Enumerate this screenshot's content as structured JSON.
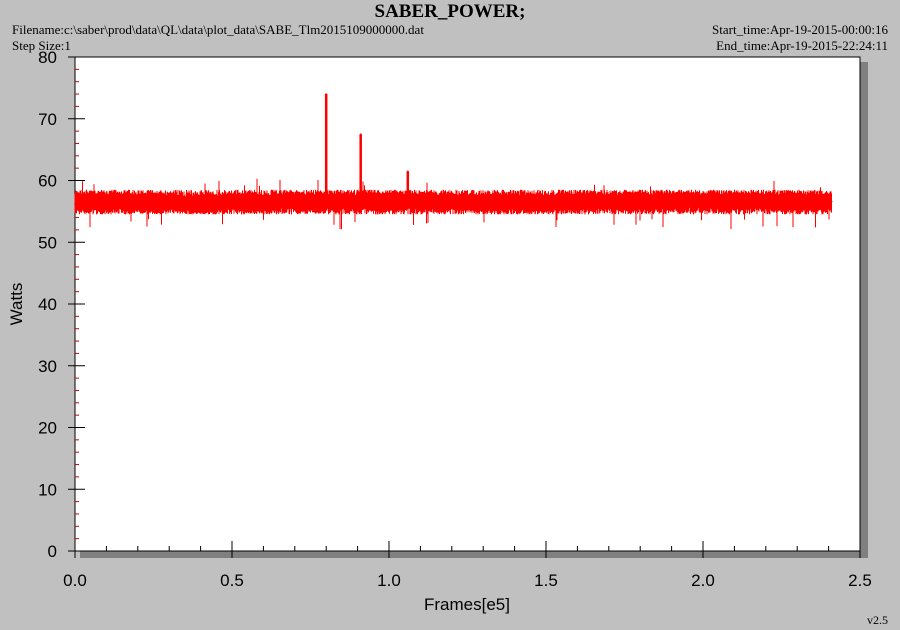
{
  "header": {
    "title": "SABER_POWER;",
    "filename": "Filename:c:\\saber\\prod\\data\\QL\\data\\plot_data\\SABE_Tlm2015109000000.dat",
    "step_size": "Step Size:1",
    "start_time": "Start_time:Apr-19-2015-00:00:16",
    "end_time": "End_time:Apr-19-2015-22:24:11",
    "version": "v2.5"
  },
  "colors": {
    "background": "#c0c0c0",
    "plot_area": "#ffffff",
    "series": "#ff0000",
    "axis": "#000000"
  },
  "chart_data": {
    "type": "line",
    "title": "SABER_POWER;",
    "xlabel": "Frames[e5]",
    "ylabel": "Watts",
    "xlim": [
      0.0,
      2.5
    ],
    "ylim": [
      0,
      80
    ],
    "x_ticks": [
      "0.0",
      "0.5",
      "1.0",
      "1.5",
      "2.0",
      "2.5"
    ],
    "y_ticks": [
      "0",
      "10",
      "20",
      "30",
      "40",
      "50",
      "60",
      "70",
      "80"
    ],
    "grid": false,
    "series": [
      {
        "x": [
          0.0,
          0.05,
          0.1,
          0.2,
          0.3,
          0.4,
          0.5,
          0.6,
          0.7,
          0.75,
          0.8,
          0.8,
          0.8,
          0.85,
          0.91,
          0.91,
          0.91,
          0.95,
          1.0,
          1.06,
          1.06,
          1.06,
          1.1,
          1.2,
          1.3,
          1.4,
          1.5,
          1.6,
          1.7,
          1.78,
          1.8,
          1.9,
          1.95,
          2.0,
          2.1,
          2.2,
          2.3,
          2.41
        ],
        "y": [
          56.2,
          57.0,
          56.5,
          56.8,
          56.4,
          55.6,
          56.6,
          56.3,
          56.9,
          56.5,
          57.0,
          74.0,
          56.8,
          56.9,
          56.5,
          67.5,
          56.8,
          57.2,
          56.8,
          57.0,
          61.5,
          56.9,
          56.6,
          56.4,
          56.3,
          56.5,
          56.4,
          56.5,
          56.6,
          56.4,
          56.8,
          56.7,
          57.0,
          56.7,
          56.6,
          56.8,
          56.5,
          56.6
        ],
        "band_min": 52.0,
        "band_max": 60.3,
        "typical_range": [
          54.5,
          58.5
        ]
      }
    ]
  }
}
